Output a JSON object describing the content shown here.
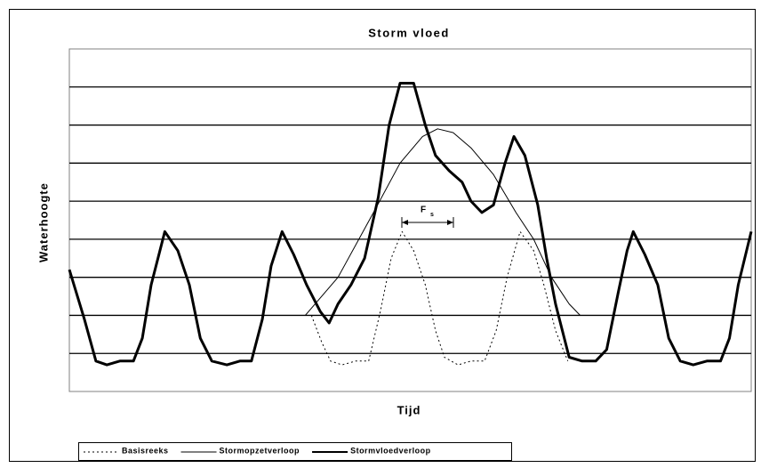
{
  "chart_data": {
    "type": "line",
    "title": "Storm vloed",
    "x_label": "Tijd",
    "y_label": "Waterhoogte",
    "annotation": {
      "text": "F",
      "subscript": "s"
    },
    "xlim": [
      0,
      100
    ],
    "ylim": [
      0,
      9
    ],
    "yticks": [
      1,
      2,
      3,
      4,
      5,
      6,
      7,
      8
    ],
    "show_tick_labels": false,
    "grid": true,
    "legend": "bottom",
    "series": [
      {
        "name": "Basisreeks",
        "color": "#000000",
        "style": "dotted",
        "width": 1,
        "x": [
          35.5,
          37.0,
          38.3,
          40.0,
          42.0,
          43.9,
          45.6,
          47.2,
          48.8,
          50.5,
          52.2,
          53.7,
          55.0,
          57.0,
          58.9,
          60.9,
          62.6,
          64.2,
          66.1,
          68.1,
          69.6,
          71.3,
          73.1
        ],
        "values": [
          2.0,
          1.3,
          0.8,
          0.7,
          0.8,
          0.8,
          2.1,
          3.5,
          4.2,
          3.7,
          2.8,
          1.6,
          0.9,
          0.7,
          0.8,
          0.8,
          1.6,
          3.0,
          4.2,
          3.7,
          2.8,
          1.6,
          0.8
        ]
      },
      {
        "name": "Stormopzetverloop",
        "color": "#000000",
        "style": "solid",
        "width": 1,
        "x": [
          34.6,
          39.4,
          44.6,
          48.5,
          51.8,
          54.0,
          56.3,
          58.9,
          62.2,
          65.5,
          68.1,
          70.7,
          73.3,
          74.9
        ],
        "values": [
          2.0,
          3.0,
          4.7,
          6.0,
          6.7,
          6.9,
          6.8,
          6.4,
          5.7,
          4.7,
          4.0,
          3.0,
          2.3,
          2.0
        ]
      },
      {
        "name": "Stormvloedverloop",
        "color": "#000000",
        "style": "solid",
        "width": 3,
        "x": [
          0,
          2.2,
          3.9,
          5.5,
          7.4,
          9.4,
          10.7,
          12.0,
          14.0,
          15.9,
          17.6,
          19.2,
          20.9,
          23.1,
          25.0,
          26.7,
          28.3,
          29.6,
          31.2,
          32.9,
          34.8,
          36.8,
          38.1,
          39.4,
          41.3,
          43.3,
          45.3,
          46.9,
          48.5,
          50.5,
          52.2,
          53.7,
          55.7,
          57.6,
          58.9,
          60.5,
          62.2,
          63.9,
          65.2,
          66.8,
          68.7,
          70.0,
          71.3,
          73.3,
          75.2,
          77.2,
          78.8,
          80.5,
          81.8,
          82.7,
          84.4,
          86.3,
          87.9,
          89.6,
          91.5,
          93.5,
          95.5,
          96.8,
          98.1,
          100
        ],
        "values": [
          3.2,
          1.9,
          0.8,
          0.7,
          0.8,
          0.8,
          1.4,
          2.8,
          4.2,
          3.7,
          2.8,
          1.4,
          0.8,
          0.7,
          0.8,
          0.8,
          1.9,
          3.3,
          4.2,
          3.6,
          2.8,
          2.1,
          1.8,
          2.3,
          2.8,
          3.5,
          5.1,
          7.0,
          8.1,
          8.1,
          7.0,
          6.2,
          5.8,
          5.5,
          5.0,
          4.7,
          4.9,
          6.0,
          6.7,
          6.2,
          4.9,
          3.5,
          2.3,
          0.9,
          0.8,
          0.8,
          1.1,
          2.6,
          3.7,
          4.2,
          3.6,
          2.8,
          1.4,
          0.8,
          0.7,
          0.8,
          0.8,
          1.4,
          2.8,
          4.2
        ]
      }
    ]
  }
}
